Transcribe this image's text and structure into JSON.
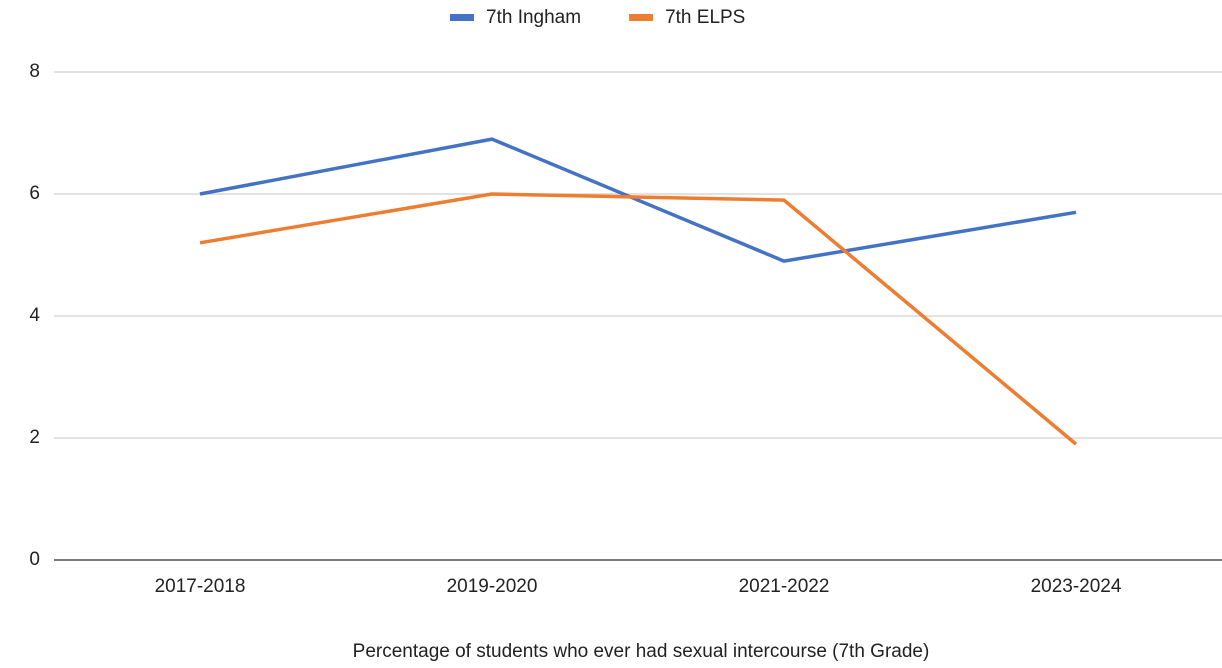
{
  "chart_data": {
    "type": "line",
    "x_label": "Percentage of students who ever had sexual intercourse (7th Grade)",
    "categories": [
      "2017-2018",
      "2019-2020",
      "2021-2022",
      "2023-2024"
    ],
    "series": [
      {
        "name": "7th Ingham",
        "color": "#4472c4",
        "values": [
          6.0,
          6.9,
          4.9,
          5.7
        ]
      },
      {
        "name": "7th ELPS",
        "color": "#ed7d31",
        "values": [
          5.2,
          6.0,
          5.9,
          1.9
        ]
      }
    ],
    "ylim": [
      0,
      8
    ],
    "yticks": [
      0,
      2,
      4,
      6,
      8
    ],
    "grid": true,
    "legend": "top"
  }
}
